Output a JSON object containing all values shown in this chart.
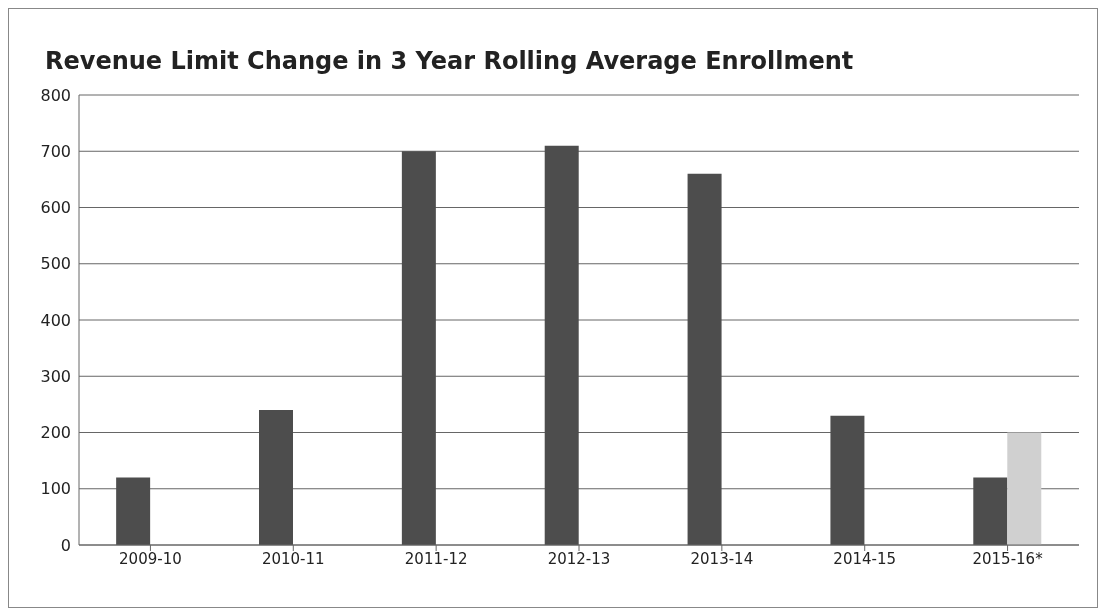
{
  "chart_data": {
    "type": "bar",
    "title": "Revenue Limit Change in 3 Year Rolling Average Enrollment",
    "categories": [
      "2009-10",
      "2010-11",
      "2011-12",
      "2012-13",
      "2013-14",
      "2014-15",
      "2015-16*"
    ],
    "series": [
      {
        "color": "#4d4d4d",
        "values": [
          120,
          240,
          700,
          710,
          660,
          230,
          120
        ]
      },
      {
        "color": "#d0d0d0",
        "values": [
          null,
          null,
          null,
          null,
          null,
          null,
          200
        ]
      }
    ],
    "ylim": [
      0,
      800
    ],
    "yticks": [
      0,
      100,
      200,
      300,
      400,
      500,
      600,
      700,
      800
    ],
    "grid": "y",
    "legend": false
  }
}
